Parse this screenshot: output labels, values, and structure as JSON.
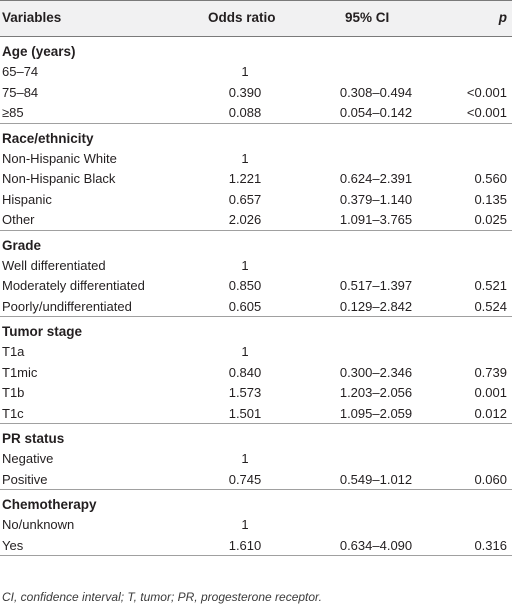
{
  "header": {
    "variables": "Variables",
    "odds_ratio": "Odds ratio",
    "ci": "95% CI",
    "p": "p"
  },
  "groups": [
    {
      "title": "Age (years)",
      "rows": [
        {
          "label": "65–74",
          "or": "1",
          "ci": "",
          "p": ""
        },
        {
          "label": "75–84",
          "or": "0.390",
          "ci": "0.308–0.494",
          "p": "<0.001"
        },
        {
          "label": "≥85",
          "or": "0.088",
          "ci": "0.054–0.142",
          "p": "<0.001"
        }
      ]
    },
    {
      "title": "Race/ethnicity",
      "rows": [
        {
          "label": "Non-Hispanic White",
          "or": "1",
          "ci": "",
          "p": ""
        },
        {
          "label": "Non-Hispanic Black",
          "or": "1.221",
          "ci": "0.624–2.391",
          "p": "0.560"
        },
        {
          "label": "Hispanic",
          "or": "0.657",
          "ci": "0.379–1.140",
          "p": "0.135"
        },
        {
          "label": "Other",
          "or": "2.026",
          "ci": "1.091–3.765",
          "p": "0.025"
        }
      ]
    },
    {
      "title": "Grade",
      "rows": [
        {
          "label": "Well differentiated",
          "or": "1",
          "ci": "",
          "p": ""
        },
        {
          "label": "Moderately differentiated",
          "or": "0.850",
          "ci": "0.517–1.397",
          "p": "0.521"
        },
        {
          "label": "Poorly/undifferentiated",
          "or": "0.605",
          "ci": "0.129–2.842",
          "p": "0.524"
        }
      ]
    },
    {
      "title": "Tumor stage",
      "rows": [
        {
          "label": "T1a",
          "or": "1",
          "ci": "",
          "p": ""
        },
        {
          "label": "T1mic",
          "or": "0.840",
          "ci": "0.300–2.346",
          "p": "0.739"
        },
        {
          "label": "T1b",
          "or": "1.573",
          "ci": "1.203–2.056",
          "p": "0.001"
        },
        {
          "label": "T1c",
          "or": "1.501",
          "ci": "1.095–2.059",
          "p": "0.012"
        }
      ]
    },
    {
      "title": "PR status",
      "rows": [
        {
          "label": "Negative",
          "or": "1",
          "ci": "",
          "p": ""
        },
        {
          "label": "Positive",
          "or": "0.745",
          "ci": "0.549–1.012",
          "p": "0.060"
        }
      ]
    },
    {
      "title": "Chemotherapy",
      "rows": [
        {
          "label": "No/unknown",
          "or": "1",
          "ci": "",
          "p": ""
        },
        {
          "label": "Yes",
          "or": "1.610",
          "ci": "0.634–4.090",
          "p": "0.316"
        }
      ]
    }
  ],
  "footnote": "CI, confidence interval; T, tumor; PR, progesterone receptor.",
  "colors": {
    "header_bg": "#f1f1f2",
    "rule": "#7a7a7a",
    "text": "#231f20"
  }
}
